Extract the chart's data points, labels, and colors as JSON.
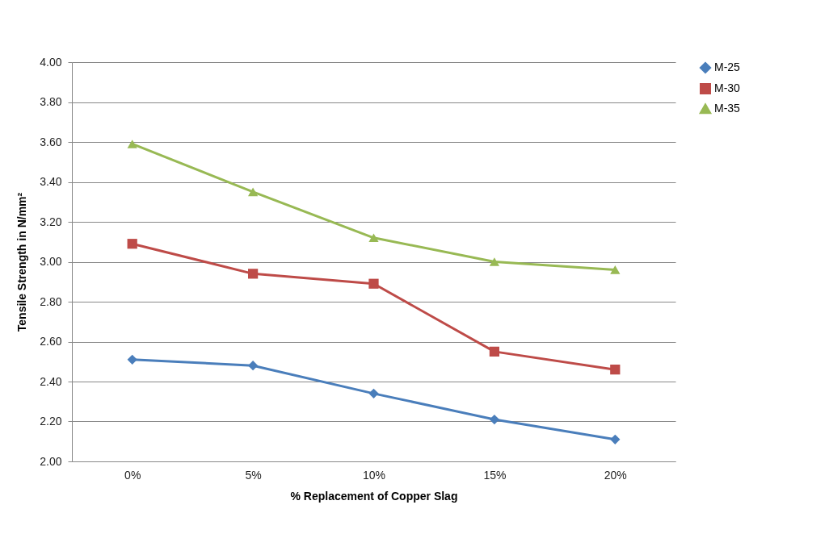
{
  "chart_data": {
    "type": "line",
    "xlabel": "% Replacement of Copper Slag",
    "ylabel": "Tensile Strength in N/mm²",
    "categories": [
      "0%",
      "5%",
      "10%",
      "15%",
      "20%"
    ],
    "series": [
      {
        "name": "M-25",
        "color": "#4a7ebb",
        "marker": "diamond",
        "values": [
          2.51,
          2.48,
          2.34,
          2.21,
          2.11
        ]
      },
      {
        "name": "M-30",
        "color": "#be4b48",
        "marker": "square",
        "values": [
          3.09,
          2.94,
          2.89,
          2.55,
          2.46
        ]
      },
      {
        "name": "M-35",
        "color": "#98b954",
        "marker": "triangle",
        "values": [
          3.59,
          3.35,
          3.12,
          3.0,
          2.96
        ]
      }
    ],
    "ylim": [
      2.0,
      4.0
    ],
    "yticks": [
      {
        "value": 2.0,
        "label": "2.00"
      },
      {
        "value": 2.2,
        "label": "2.20"
      },
      {
        "value": 2.4,
        "label": "2.40"
      },
      {
        "value": 2.6,
        "label": "2.60"
      },
      {
        "value": 2.8,
        "label": "2.80"
      },
      {
        "value": 3.0,
        "label": "3.00"
      },
      {
        "value": 3.2,
        "label": "3.20"
      },
      {
        "value": 3.4,
        "label": "3.40"
      },
      {
        "value": 3.6,
        "label": "3.60"
      },
      {
        "value": 3.8,
        "label": "3.80"
      },
      {
        "value": 4.0,
        "label": "4.00"
      }
    ],
    "grid": "y",
    "legend": "right"
  }
}
